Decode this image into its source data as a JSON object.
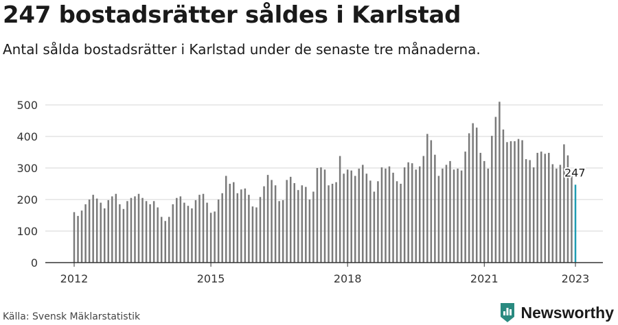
{
  "header": {
    "title": "247 bostadsrätter såldes i Karlstad",
    "subtitle": "Antal sålda bostadsrätter i Karlstad under de senaste tre månaderna."
  },
  "footer": {
    "source": "Källa: Svensk Mäklarstatistik",
    "brand": "Newsworthy"
  },
  "colors": {
    "bar": "#7a7a7a",
    "highlight": "#1f9db3",
    "brand": "#2a8a80",
    "grid": "#d6d6d6"
  },
  "chart_data": {
    "type": "bar",
    "title": "247 bostadsrätter såldes i Karlstad",
    "subtitle": "Antal sålda bostadsrätter i Karlstad under de senaste tre månaderna.",
    "xlabel": "",
    "ylabel": "",
    "ylim": [
      0,
      520
    ],
    "y_ticks": [
      0,
      100,
      200,
      300,
      400,
      500
    ],
    "x_ticks": [
      "2012",
      "2015",
      "2018",
      "2021",
      "2023"
    ],
    "x_tick_dates": [
      "2012-01",
      "2015-01",
      "2018-01",
      "2021-01",
      "2023-01"
    ],
    "grid": true,
    "legend": "none",
    "highlight_label": "247",
    "series": [
      {
        "x": [
          "2012-01",
          "2012-02",
          "2012-03",
          "2012-04",
          "2012-05",
          "2012-06",
          "2012-07",
          "2012-08",
          "2012-09",
          "2012-10",
          "2012-11",
          "2012-12",
          "2013-01",
          "2013-02",
          "2013-03",
          "2013-04",
          "2013-05",
          "2013-06",
          "2013-07",
          "2013-08",
          "2013-09",
          "2013-10",
          "2013-11",
          "2013-12",
          "2014-01",
          "2014-02",
          "2014-03",
          "2014-04",
          "2014-05",
          "2014-06",
          "2014-07",
          "2014-08",
          "2014-09",
          "2014-10",
          "2014-11",
          "2014-12",
          "2015-01",
          "2015-02",
          "2015-03",
          "2015-04",
          "2015-05",
          "2015-06",
          "2015-07",
          "2015-08",
          "2015-09",
          "2015-10",
          "2015-11",
          "2015-12",
          "2016-01",
          "2016-02",
          "2016-03",
          "2016-04",
          "2016-05",
          "2016-06",
          "2016-07",
          "2016-08",
          "2016-09",
          "2016-10",
          "2016-11",
          "2016-12",
          "2017-01",
          "2017-02",
          "2017-03",
          "2017-04",
          "2017-05",
          "2017-06",
          "2017-07",
          "2017-08",
          "2017-09",
          "2017-10",
          "2017-11",
          "2017-12",
          "2018-01",
          "2018-02",
          "2018-03",
          "2018-04",
          "2018-05",
          "2018-06",
          "2018-07",
          "2018-08",
          "2018-09",
          "2018-10",
          "2018-11",
          "2018-12",
          "2019-01",
          "2019-02",
          "2019-03",
          "2019-04",
          "2019-05",
          "2019-06",
          "2019-07",
          "2019-08",
          "2019-09",
          "2019-10",
          "2019-11",
          "2019-12",
          "2020-01",
          "2020-02",
          "2020-03",
          "2020-04",
          "2020-05",
          "2020-06",
          "2020-07",
          "2020-08",
          "2020-09",
          "2020-10",
          "2020-11",
          "2020-12",
          "2021-01",
          "2021-02",
          "2021-03",
          "2021-04",
          "2021-05",
          "2021-06",
          "2021-07",
          "2021-08",
          "2021-09",
          "2021-10",
          "2021-11",
          "2021-12",
          "2022-01",
          "2022-02",
          "2022-03",
          "2022-04",
          "2022-05",
          "2022-06",
          "2022-07",
          "2022-08",
          "2022-09",
          "2022-10",
          "2022-11",
          "2022-12",
          "2023-01"
        ],
        "values": [
          160,
          148,
          165,
          185,
          200,
          215,
          203,
          190,
          172,
          198,
          210,
          218,
          185,
          170,
          195,
          205,
          210,
          218,
          205,
          195,
          185,
          195,
          175,
          145,
          132,
          145,
          185,
          205,
          210,
          190,
          180,
          172,
          198,
          215,
          218,
          190,
          158,
          162,
          200,
          220,
          275,
          250,
          255,
          220,
          232,
          235,
          215,
          178,
          175,
          208,
          242,
          278,
          262,
          245,
          195,
          198,
          262,
          272,
          252,
          230,
          245,
          240,
          200,
          225,
          300,
          302,
          295,
          245,
          250,
          255,
          338,
          282,
          295,
          292,
          275,
          298,
          310,
          282,
          260,
          225,
          258,
          302,
          298,
          305,
          285,
          258,
          250,
          302,
          318,
          315,
          295,
          305,
          338,
          408,
          388,
          342,
          275,
          298,
          310,
          322,
          295,
          298,
          292,
          352,
          410,
          442,
          428,
          348,
          322,
          298,
          402,
          462,
          510,
          422,
          382,
          385,
          385,
          392,
          388,
          328,
          325,
          302,
          348,
          352,
          345,
          348,
          312,
          298,
          310,
          375,
          340,
          275,
          247
        ]
      }
    ]
  }
}
